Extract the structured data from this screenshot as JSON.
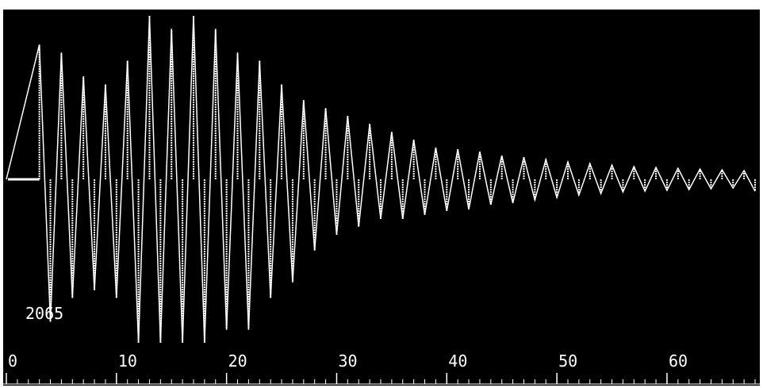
{
  "chart_data": {
    "type": "line",
    "title": "",
    "xlabel": "",
    "ylabel": "",
    "xlim": [
      0,
      68
    ],
    "ylim": [
      -2065,
      2065
    ],
    "grid": false,
    "x_tick_labels": [
      "0",
      "10",
      "20",
      "30",
      "40",
      "50",
      "60"
    ],
    "x_tick_values": [
      0,
      10,
      20,
      30,
      40,
      50,
      60
    ],
    "peak_label": "2065",
    "series": [
      {
        "description": "damped oscillating signal",
        "x": [
          0,
          3,
          4,
          5,
          6,
          7,
          8,
          9,
          10,
          11,
          12,
          13,
          14,
          15,
          16,
          17,
          18,
          19,
          20,
          21,
          22,
          23,
          24,
          25,
          26,
          27,
          28,
          29,
          30,
          31,
          32,
          33,
          34,
          35,
          36,
          37,
          38,
          39,
          40,
          41,
          42,
          43,
          44,
          45,
          46,
          47,
          48,
          49,
          50,
          51,
          52,
          53,
          54,
          55,
          56,
          57,
          58,
          59,
          60,
          61,
          62,
          63,
          64,
          65,
          66,
          67,
          68
        ],
        "y": [
          0,
          1700,
          -1800,
          1600,
          -1500,
          1300,
          -1400,
          1200,
          -1500,
          1500,
          -2065,
          2065,
          -2065,
          1900,
          -2065,
          2065,
          -2065,
          1900,
          -1900,
          1600,
          -1900,
          1500,
          -1500,
          1200,
          -1300,
          1000,
          -900,
          900,
          -700,
          800,
          -600,
          700,
          -500,
          600,
          -500,
          500,
          -450,
          400,
          -400,
          380,
          -380,
          350,
          -320,
          300,
          -300,
          280,
          -260,
          250,
          -230,
          220,
          -200,
          200,
          -180,
          180,
          -160,
          160,
          -150,
          150,
          -140,
          140,
          -130,
          130,
          -120,
          120,
          -110,
          110,
          -150
        ]
      }
    ],
    "colors": {
      "background": "#000000",
      "trace": "#ffffff",
      "page": "#ffffff"
    }
  }
}
